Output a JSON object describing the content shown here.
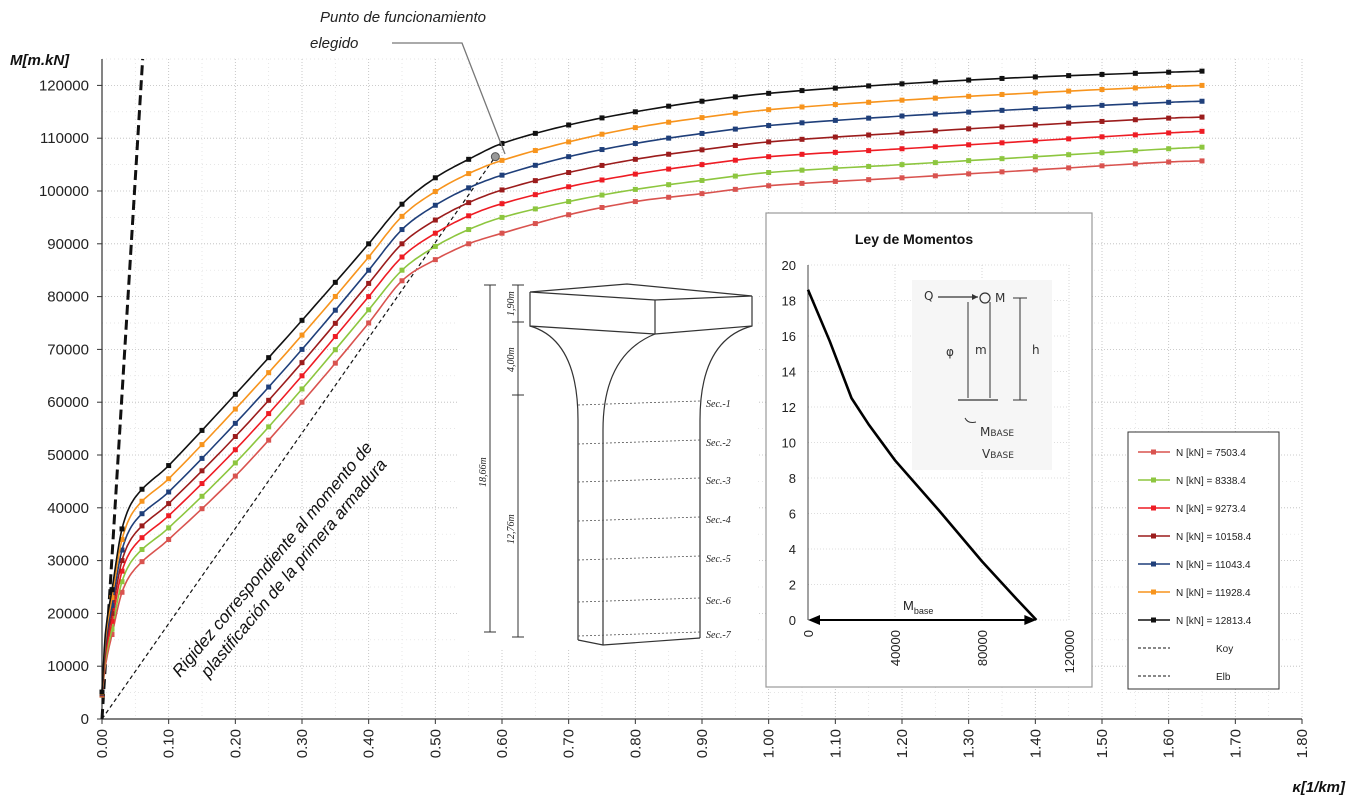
{
  "chart_data": {
    "type": "line",
    "xlabel": "κ[1/km]",
    "ylabel": "M[m.kN]",
    "xlim": [
      0,
      1.8
    ],
    "ylim": [
      0,
      125000
    ],
    "x_ticks": [
      "0.00",
      "0.10",
      "0.20",
      "0.30",
      "0.40",
      "0.50",
      "0.60",
      "0.70",
      "0.80",
      "0.90",
      "1.00",
      "1.10",
      "1.20",
      "1.30",
      "1.40",
      "1.50",
      "1.60",
      "1.70",
      "1.80"
    ],
    "y_ticks": [
      "0",
      "10000",
      "20000",
      "30000",
      "40000",
      "50000",
      "60000",
      "70000",
      "80000",
      "90000",
      "100000",
      "110000",
      "120000"
    ],
    "grid": "dotted",
    "legend_position": "right",
    "series": [
      {
        "name": "N [kN] = 7503.4",
        "color": "#d9534f",
        "x": [
          0,
          0.005,
          0.015,
          0.03,
          0.05,
          0.1,
          0.2,
          0.3,
          0.4,
          0.45,
          0.5,
          0.55,
          0.6,
          0.7,
          0.8,
          0.9,
          1.0,
          1.2,
          1.4,
          1.6,
          1.65
        ],
        "y": [
          4500,
          10000,
          16000,
          24000,
          28500,
          34000,
          46000,
          60000,
          75000,
          83000,
          87000,
          90000,
          92000,
          95500,
          98000,
          99500,
          101000,
          102500,
          104000,
          105500,
          105700
        ]
      },
      {
        "name": "N [kN] = 8338.4",
        "color": "#8dc63f",
        "x": [
          0,
          0.005,
          0.015,
          0.03,
          0.05,
          0.1,
          0.2,
          0.3,
          0.4,
          0.45,
          0.5,
          0.55,
          0.6,
          0.7,
          0.8,
          0.9,
          1.0,
          1.2,
          1.4,
          1.6,
          1.65
        ],
        "y": [
          4600,
          11000,
          17000,
          26000,
          30800,
          36200,
          48500,
          62500,
          77500,
          85000,
          89500,
          92700,
          95000,
          98000,
          100300,
          102000,
          103500,
          105000,
          106500,
          108000,
          108300
        ]
      },
      {
        "name": "N [kN] = 9273.4",
        "color": "#ee1c24",
        "x": [
          0,
          0.005,
          0.015,
          0.03,
          0.05,
          0.1,
          0.2,
          0.3,
          0.4,
          0.45,
          0.5,
          0.55,
          0.6,
          0.7,
          0.8,
          0.9,
          1.0,
          1.2,
          1.4,
          1.6,
          1.65
        ],
        "y": [
          4700,
          12000,
          18500,
          28000,
          33000,
          38500,
          51000,
          65000,
          80000,
          87500,
          92000,
          95300,
          97600,
          100800,
          103200,
          105000,
          106500,
          108000,
          109500,
          111000,
          111300
        ]
      },
      {
        "name": "N [kN] = 10158.4",
        "color": "#9b1c1c",
        "x": [
          0,
          0.005,
          0.015,
          0.03,
          0.05,
          0.1,
          0.2,
          0.3,
          0.4,
          0.45,
          0.5,
          0.55,
          0.6,
          0.7,
          0.8,
          0.9,
          1.0,
          1.2,
          1.4,
          1.6,
          1.65
        ],
        "y": [
          4800,
          13000,
          20000,
          30000,
          35200,
          40800,
          53500,
          67500,
          82500,
          90000,
          94500,
          97800,
          100200,
          103500,
          106000,
          107800,
          109300,
          111000,
          112500,
          113800,
          114000
        ]
      },
      {
        "name": "N [kN] = 11043.4",
        "color": "#1f3f7a",
        "x": [
          0,
          0.005,
          0.015,
          0.03,
          0.05,
          0.1,
          0.2,
          0.3,
          0.4,
          0.45,
          0.5,
          0.55,
          0.6,
          0.7,
          0.8,
          0.9,
          1.0,
          1.2,
          1.4,
          1.6,
          1.65
        ],
        "y": [
          4900,
          14000,
          21500,
          32000,
          37500,
          43000,
          56000,
          70000,
          85000,
          92700,
          97300,
          100600,
          103000,
          106500,
          109000,
          110900,
          112400,
          114200,
          115600,
          116800,
          117000
        ]
      },
      {
        "name": "N [kN] = 11928.4",
        "color": "#f7941d",
        "x": [
          0,
          0.005,
          0.015,
          0.03,
          0.05,
          0.1,
          0.2,
          0.3,
          0.4,
          0.45,
          0.5,
          0.55,
          0.6,
          0.7,
          0.8,
          0.9,
          1.0,
          1.2,
          1.4,
          1.6,
          1.65
        ],
        "y": [
          5000,
          15000,
          23000,
          34000,
          39800,
          45500,
          58700,
          72700,
          87500,
          95200,
          99900,
          103300,
          105800,
          109300,
          112000,
          113900,
          115400,
          117200,
          118600,
          119800,
          120000
        ]
      },
      {
        "name": "N [kN] = 12813.4",
        "color": "#111111",
        "x": [
          0,
          0.005,
          0.015,
          0.03,
          0.05,
          0.1,
          0.2,
          0.3,
          0.4,
          0.45,
          0.5,
          0.55,
          0.6,
          0.7,
          0.8,
          0.9,
          1.0,
          1.2,
          1.4,
          1.6,
          1.65
        ],
        "y": [
          5100,
          16000,
          24500,
          36000,
          42000,
          48000,
          61500,
          75500,
          90000,
          97500,
          102500,
          106000,
          109000,
          112500,
          115000,
          117000,
          118500,
          120300,
          121600,
          122500,
          122700
        ]
      }
    ],
    "reference_lines": [
      {
        "name": "Koy",
        "style": "bold-dashed",
        "x": [
          0,
          0.061
        ],
        "y": [
          0,
          125000
        ]
      },
      {
        "name": "Elb",
        "style": "dashed",
        "x": [
          0,
          0.59
        ],
        "y": [
          0,
          106500
        ]
      }
    ],
    "annotations": {
      "operating_point_label_line1": "Punto de funcionamiento",
      "operating_point_label_line2": "elegido",
      "operating_point": {
        "x": 0.59,
        "y": 106500
      },
      "stiffness_label_line1": "Rigidez correspondiente al momento de",
      "stiffness_label_line2": "plastificación de la primera armadura"
    },
    "inset_moment_law": {
      "title": "Ley de Momentos",
      "type": "line",
      "x_ticks": [
        "0",
        "40000",
        "80000",
        "120000"
      ],
      "y_ticks": [
        "0",
        "2",
        "4",
        "6",
        "8",
        "10",
        "12",
        "14",
        "16",
        "18",
        "20"
      ],
      "xlim": [
        0,
        120000
      ],
      "ylim": [
        0,
        20
      ],
      "curve": {
        "x": [
          0,
          10000,
          20000,
          28000,
          40000,
          60000,
          80000,
          95000,
          105000
        ],
        "y": [
          18.6,
          15.7,
          12.5,
          11.0,
          9.0,
          6.2,
          3.3,
          1.3,
          0
        ]
      },
      "arrow_label": "M",
      "arrow_label_sub": "base",
      "sketch": {
        "q": "Q",
        "m_top": "M",
        "phi": "φ",
        "m": "m",
        "h": "h",
        "m_base": "M",
        "m_base_sub": "BASE",
        "v_base": "V",
        "v_base_sub": "BASE"
      }
    },
    "pier_drawing": {
      "dims": [
        "1,90m",
        "4,00m",
        "18,66m",
        "12,76m"
      ],
      "sections": [
        "Sec.-1",
        "Sec.-2",
        "Sec.-3",
        "Sec.-4",
        "Sec.-5",
        "Sec.-6",
        "Sec.-7"
      ]
    },
    "legend_entries": [
      "N [kN] = 7503.4",
      "N [kN] = 8338.4",
      "N [kN] = 9273.4",
      "N [kN] = 10158.4",
      "N [kN] = 11043.4",
      "N [kN] = 11928.4",
      "N [kN] = 12813.4",
      "Koy",
      "Elb"
    ]
  }
}
